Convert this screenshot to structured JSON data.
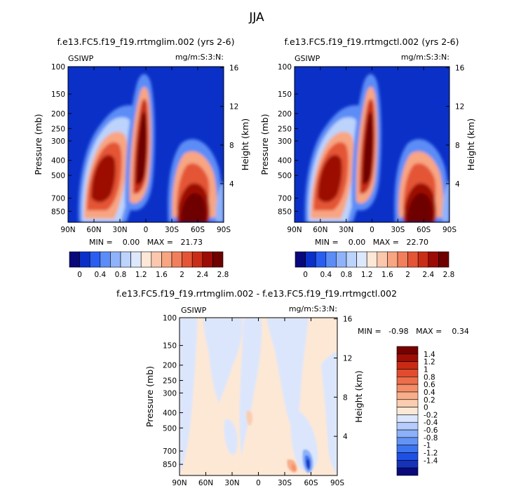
{
  "page_title": "JJA",
  "colors": {
    "scale_abs": [
      "#08087a",
      "#0a30c8",
      "#2a5ef0",
      "#5c8cf6",
      "#8fb3fa",
      "#bcd3fc",
      "#dde8fd",
      "#fde7d6",
      "#fbc8ad",
      "#f8a582",
      "#f27f5c",
      "#e45536",
      "#c92d17",
      "#9c0b05",
      "#6e0000"
    ],
    "scale_diff": [
      "#0a0a7e",
      "#1433b8",
      "#1f50e6",
      "#3c74f0",
      "#6393f5",
      "#8cb1f9",
      "#b6ccfb",
      "#dbe6fd",
      "#fde8d6",
      "#fbcdb0",
      "#f8ae8a",
      "#f48e68",
      "#ec6e4a",
      "#e24b2d",
      "#c82a14",
      "#a00d05",
      "#760000"
    ]
  },
  "chart_data": [
    {
      "type": "heatmap",
      "title": "f.e13.FC5.f19_f19.rrtmglim.002 (yrs 2-6)",
      "left_string": "GSIWP",
      "right_string": "mg/m:S:3:N:",
      "ylabel": "Pressure (mb)",
      "ylabel_right": "Height (km)",
      "x_ticks": [
        "90N",
        "60N",
        "30N",
        "0",
        "30S",
        "60S",
        "90S"
      ],
      "y_ticks": [
        "100",
        "150",
        "200",
        "250",
        "300",
        "400",
        "500",
        "700",
        "850"
      ],
      "y_right_ticks": [
        "16",
        "12",
        "8",
        "4"
      ],
      "stats": "MIN =    0.00   MAX =   21.73",
      "colorbar_labels": [
        "0",
        "0.4",
        "0.8",
        "1.2",
        "1.6",
        "2",
        "2.4",
        "2.8"
      ],
      "features": [
        {
          "lat": 48,
          "p": 420,
          "value": 2.6
        },
        {
          "lat": 12,
          "p": 260,
          "value": 2.8
        },
        {
          "lat": -68,
          "p": 780,
          "value": 2.8
        },
        {
          "lat": -62,
          "p": 420,
          "value": 1.8
        }
      ]
    },
    {
      "type": "heatmap",
      "title": "f.e13.FC5.f19_f19.rrtmgctl.002 (yrs 2-6)",
      "left_string": "GSIWP",
      "right_string": "mg/m:S:3:N:",
      "ylabel": "Pressure (mb)",
      "ylabel_right": "Height (km)",
      "x_ticks": [
        "90N",
        "60N",
        "30N",
        "0",
        "30S",
        "60S",
        "90S"
      ],
      "y_ticks": [
        "100",
        "150",
        "200",
        "250",
        "300",
        "400",
        "500",
        "700",
        "850"
      ],
      "y_right_ticks": [
        "16",
        "12",
        "8",
        "4"
      ],
      "stats": "MIN =    0.00   MAX =   22.70",
      "colorbar_labels": [
        "0",
        "0.4",
        "0.8",
        "1.2",
        "1.6",
        "2",
        "2.4",
        "2.8"
      ],
      "features": [
        {
          "lat": 48,
          "p": 420,
          "value": 2.6
        },
        {
          "lat": 12,
          "p": 260,
          "value": 2.8
        },
        {
          "lat": -68,
          "p": 780,
          "value": 2.8
        },
        {
          "lat": -62,
          "p": 420,
          "value": 1.8
        }
      ]
    },
    {
      "type": "heatmap",
      "title": "f.e13.FC5.f19_f19.rrtmglim.002 - f.e13.FC5.f19_f19.rrtmgctl.002",
      "left_string": "GSIWP",
      "right_string": "mg/m:S:3:N:",
      "ylabel": "Pressure (mb)",
      "ylabel_right": "Height (km)",
      "x_ticks": [
        "90N",
        "60N",
        "30N",
        "0",
        "30S",
        "60S",
        "90S"
      ],
      "y_ticks": [
        "100",
        "150",
        "200",
        "250",
        "300",
        "400",
        "500",
        "700",
        "850"
      ],
      "y_right_ticks": [
        "16",
        "12",
        "8",
        "4"
      ],
      "stats": "MIN =   -0.98   MAX =    0.34",
      "colorbar_labels": [
        "1.4",
        "1.2",
        "1",
        "0.8",
        "0.6",
        "0.4",
        "0.2",
        "0",
        "-0.2",
        "-0.4",
        "-0.6",
        "-0.8",
        "-1",
        "-1.2",
        "-1.4"
      ],
      "features": [
        {
          "lat": -57,
          "p": 810,
          "value": -0.98
        },
        {
          "lat": -40,
          "p": 810,
          "value": 0.3
        },
        {
          "lat": -4,
          "p": 320,
          "value": -0.1
        },
        {
          "lat": 10,
          "p": 380,
          "value": 0.1
        }
      ]
    }
  ]
}
